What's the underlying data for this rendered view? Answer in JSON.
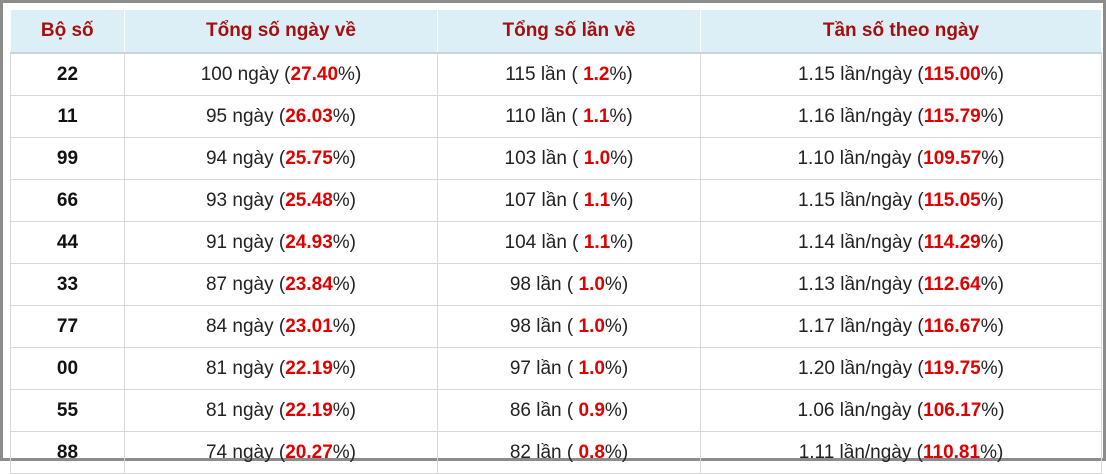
{
  "table": {
    "header": [
      "Bộ số",
      "Tổng số ngày về",
      "Tổng số lần về",
      "Tần số theo ngày"
    ],
    "rows": [
      [
        [
          "22"
        ],
        [
          "100 ngày (",
          "27.40",
          "%)"
        ],
        [
          "115 lần ( ",
          "1.2",
          "%)"
        ],
        [
          "1.15 lần/ngày (",
          "115.00",
          "%)"
        ]
      ],
      [
        [
          "11"
        ],
        [
          "95 ngày (",
          "26.03",
          "%)"
        ],
        [
          "110 lần ( ",
          "1.1",
          "%)"
        ],
        [
          "1.16 lần/ngày (",
          "115.79",
          "%)"
        ]
      ],
      [
        [
          "99"
        ],
        [
          "94 ngày (",
          "25.75",
          "%)"
        ],
        [
          "103 lần ( ",
          "1.0",
          "%)"
        ],
        [
          "1.10 lần/ngày (",
          "109.57",
          "%)"
        ]
      ],
      [
        [
          "66"
        ],
        [
          "93 ngày (",
          "25.48",
          "%)"
        ],
        [
          "107 lần ( ",
          "1.1",
          "%)"
        ],
        [
          "1.15 lần/ngày (",
          "115.05",
          "%)"
        ]
      ],
      [
        [
          "44"
        ],
        [
          "91 ngày (",
          "24.93",
          "%)"
        ],
        [
          "104 lần ( ",
          "1.1",
          "%)"
        ],
        [
          "1.14 lần/ngày (",
          "114.29",
          "%)"
        ]
      ],
      [
        [
          "33"
        ],
        [
          "87 ngày (",
          "23.84",
          "%)"
        ],
        [
          "98 lần ( ",
          "1.0",
          "%)"
        ],
        [
          "1.13 lần/ngày (",
          "112.64",
          "%)"
        ]
      ],
      [
        [
          "77"
        ],
        [
          "84 ngày (",
          "23.01",
          "%)"
        ],
        [
          "98 lần ( ",
          "1.0",
          "%)"
        ],
        [
          "1.17 lần/ngày (",
          "116.67",
          "%)"
        ]
      ],
      [
        [
          "00"
        ],
        [
          "81 ngày (",
          "22.19",
          "%)"
        ],
        [
          "97 lần ( ",
          "1.0",
          "%)"
        ],
        [
          "1.20 lần/ngày (",
          "119.75",
          "%)"
        ]
      ],
      [
        [
          "55"
        ],
        [
          "81 ngày (",
          "22.19",
          "%)"
        ],
        [
          "86 lần ( ",
          "0.9",
          "%)"
        ],
        [
          "1.06 lần/ngày (",
          "106.17",
          "%)"
        ]
      ],
      [
        [
          "88"
        ],
        [
          "74 ngày (",
          "20.27",
          "%)"
        ],
        [
          "82 lần ( ",
          "0.8",
          "%)"
        ],
        [
          "1.11 lần/ngày (",
          "110.81",
          "%)"
        ]
      ]
    ]
  }
}
